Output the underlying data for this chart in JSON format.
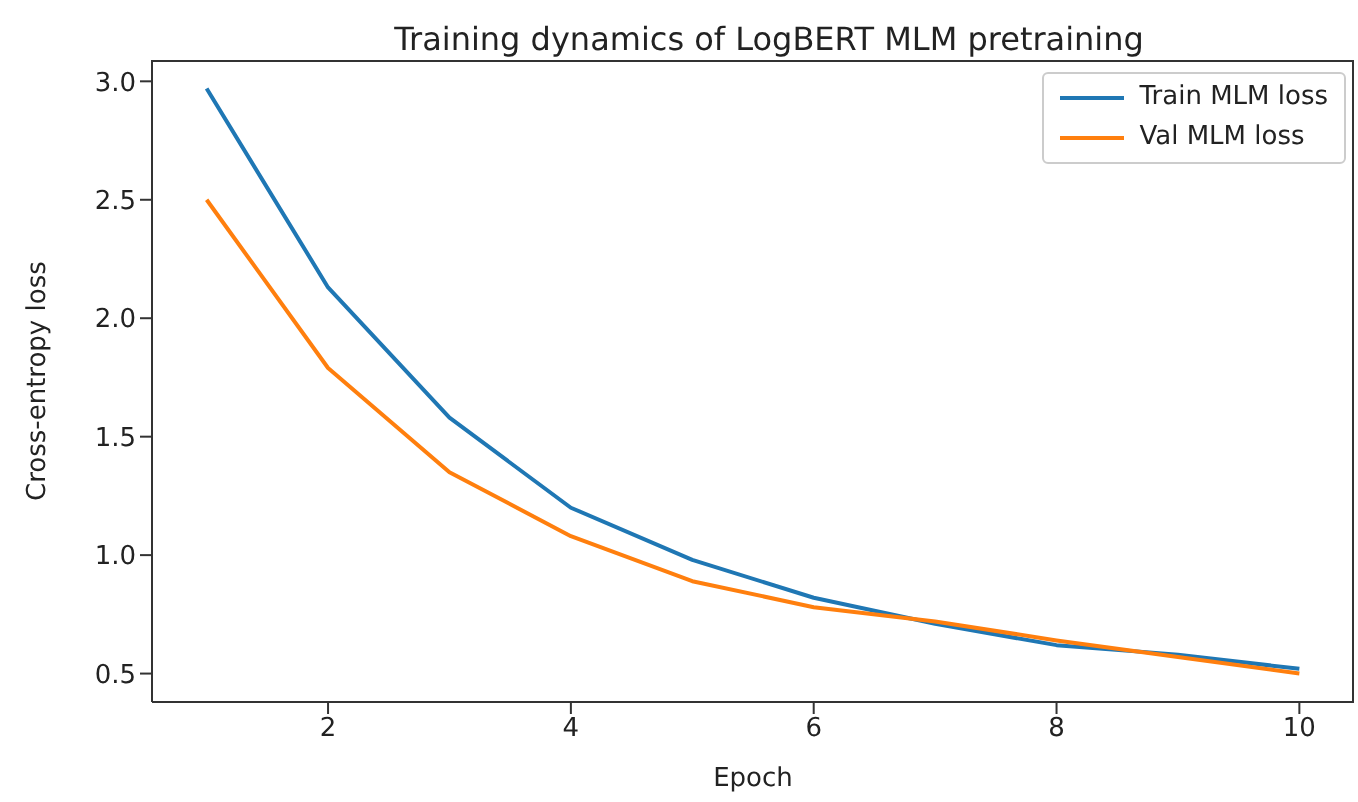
{
  "chart_data": {
    "type": "line",
    "title": "Training dynamics of LogBERT MLM pretraining",
    "xlabel": "Epoch",
    "ylabel": "Cross-entropy loss",
    "x": [
      1,
      2,
      3,
      4,
      5,
      6,
      7,
      8,
      9,
      10
    ],
    "series": [
      {
        "name": "Train MLM loss",
        "color": "#1f77b4",
        "values": [
          2.97,
          2.13,
          1.58,
          1.2,
          0.98,
          0.82,
          0.71,
          0.62,
          0.58,
          0.52
        ]
      },
      {
        "name": "Val MLM loss",
        "color": "#ff7f0e",
        "values": [
          2.5,
          1.79,
          1.35,
          1.08,
          0.89,
          0.78,
          0.72,
          0.64,
          0.57,
          0.5
        ]
      }
    ],
    "xlim": [
      0.55,
      10.45
    ],
    "xticks": [
      2,
      4,
      6,
      8,
      10
    ],
    "ylim": [
      0.38,
      3.09
    ],
    "yticks": [
      0.5,
      {
        "value": 1,
        "label": "1.0"
      },
      1.5,
      {
        "value": 2,
        "label": "2.0"
      },
      2.5,
      {
        "value": 3,
        "label": "3.0"
      }
    ],
    "grid": false,
    "legend": "top right",
    "marker": "none",
    "line_style": "solid"
  }
}
